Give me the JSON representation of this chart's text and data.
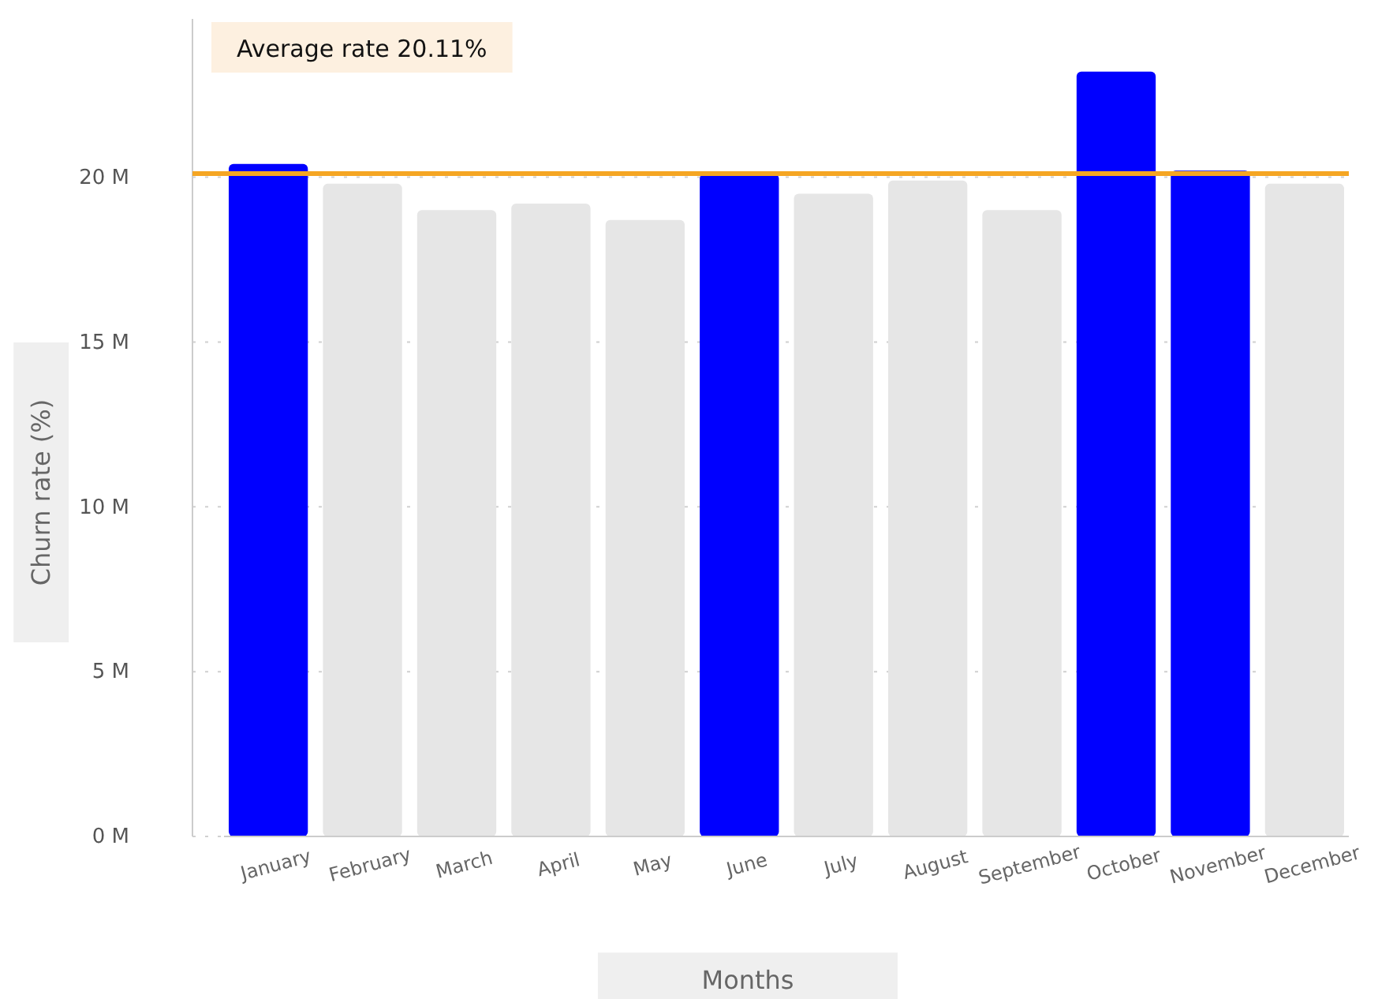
{
  "chart_data": {
    "type": "bar",
    "xlabel": "Months",
    "ylabel": "Churn rate (%)",
    "categories": [
      "January",
      "February",
      "March",
      "April",
      "May",
      "June",
      "July",
      "August",
      "September",
      "October",
      "November",
      "December"
    ],
    "values": [
      20.4,
      19.8,
      19.0,
      19.2,
      18.7,
      20.1,
      19.5,
      19.9,
      19.0,
      23.2,
      20.2,
      19.8
    ],
    "colors": [
      "#0000ff",
      "#e6e6e6",
      "#e6e6e6",
      "#e6e6e6",
      "#e6e6e6",
      "#0000ff",
      "#e6e6e6",
      "#e6e6e6",
      "#e6e6e6",
      "#0000ff",
      "#0000ff",
      "#e6e6e6"
    ],
    "ylim": [
      0,
      24.8
    ],
    "yticks": [
      {
        "value": 0,
        "label": "0 M"
      },
      {
        "value": 5,
        "label": "5 M"
      },
      {
        "value": 10,
        "label": "10 M"
      },
      {
        "value": 15,
        "label": "15 M"
      },
      {
        "value": 20,
        "label": "20 M"
      }
    ],
    "grid": "y",
    "annotations": [
      "Average rate 20.11%"
    ],
    "ref_lines": [
      {
        "axis": "y",
        "value": 20.11,
        "color": "#f5a623"
      }
    ]
  }
}
